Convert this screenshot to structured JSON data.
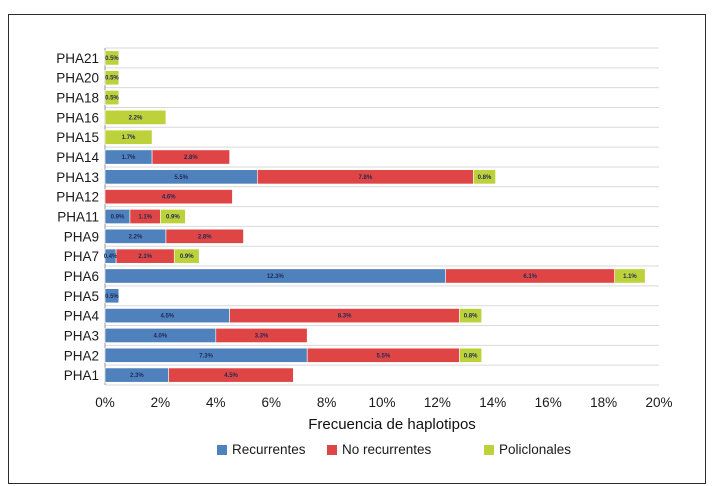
{
  "chart_data": {
    "type": "bar",
    "orientation": "horizontal",
    "stacked": true,
    "categories": [
      "PHA21",
      "PHA20",
      "PHA18",
      "PHA16",
      "PHA15",
      "PHA14",
      "PHA13",
      "PHA12",
      "PHA11",
      "PHA9",
      "PHA7",
      "PHA6",
      "PHA5",
      "PHA4",
      "PHA3",
      "PHA2",
      "PHA1"
    ],
    "series": [
      {
        "name": "Recurrentes",
        "color": "#4f81bd",
        "values": [
          0,
          0,
          0,
          0,
          0,
          1.7,
          5.5,
          0,
          0.9,
          2.2,
          0.4,
          12.3,
          0.5,
          4.5,
          4.0,
          7.3,
          2.3
        ]
      },
      {
        "name": "No recurrentes",
        "color": "#e04545",
        "values": [
          0,
          0,
          0,
          0,
          0,
          2.8,
          7.8,
          4.6,
          1.1,
          2.8,
          2.1,
          6.1,
          0,
          8.3,
          3.3,
          5.5,
          4.5
        ]
      },
      {
        "name": "Policlonales",
        "color": "#bdd13a",
        "values": [
          0.5,
          0.5,
          0.5,
          2.2,
          1.7,
          0,
          0.8,
          0,
          0.9,
          0,
          0.9,
          1.1,
          0,
          0.8,
          0,
          0.8,
          0
        ]
      }
    ],
    "data_labels": [
      [
        "",
        "",
        "0.5%"
      ],
      [
        "",
        "",
        "0.5%"
      ],
      [
        "",
        "",
        "0.5%"
      ],
      [
        "",
        "",
        "2.2%"
      ],
      [
        "",
        "",
        "1.7%"
      ],
      [
        "1.7%",
        "2.8%",
        ""
      ],
      [
        "5.5%",
        "7.8%",
        "0.8%"
      ],
      [
        "",
        "4.6%",
        ""
      ],
      [
        "0.9%",
        "1.1%",
        "0.9%"
      ],
      [
        "2.2%",
        "2.8%",
        ""
      ],
      [
        "0.4%",
        "2.1%",
        "0.9%"
      ],
      [
        "12.3%",
        "6.1%",
        "1.1%"
      ],
      [
        "0.5%",
        "",
        ""
      ],
      [
        "4.5%",
        "8.3%",
        "0.8%"
      ],
      [
        "4.0%",
        "3.3%",
        ""
      ],
      [
        "7.3%",
        "5.5%",
        "0.8%"
      ],
      [
        "2.3%",
        "4.5%",
        ""
      ]
    ],
    "xlim": [
      0,
      20
    ],
    "xticks": [
      "0%",
      "2%",
      "4%",
      "6%",
      "8%",
      "10%",
      "12%",
      "14%",
      "16%",
      "18%",
      "20%"
    ],
    "xlabel": "Frecuencia de haplotipos",
    "ylabel": "",
    "title": "",
    "grid": true,
    "legend_position": "bottom"
  }
}
